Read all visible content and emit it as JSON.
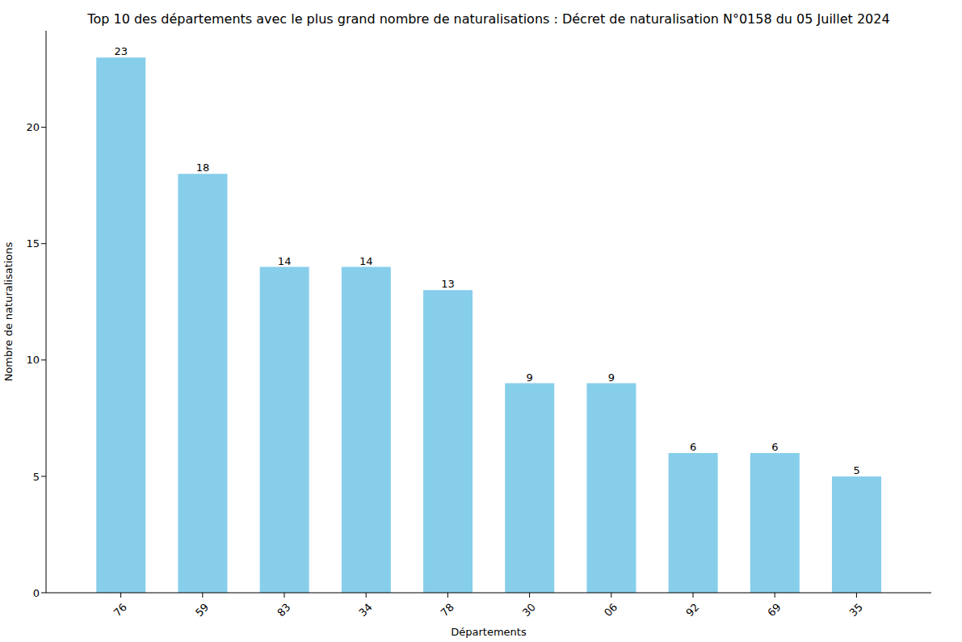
{
  "chart_data": {
    "type": "bar",
    "title": "Top 10 des départements avec le plus grand nombre de naturalisations : Décret de naturalisation N°0158 du 05 Juillet 2024",
    "x_label": "Départements",
    "y_label": "Nombre de naturalisations",
    "categories": [
      "76",
      "59",
      "83",
      "34",
      "78",
      "30",
      "06",
      "92",
      "69",
      "35"
    ],
    "values": [
      23,
      18,
      14,
      14,
      13,
      9,
      9,
      6,
      6,
      5
    ],
    "color": "#87ceeb",
    "ylim": [
      0,
      24.15
    ],
    "yticks": [
      0,
      5,
      10,
      15,
      20
    ],
    "grid": false,
    "data_labels": true
  }
}
